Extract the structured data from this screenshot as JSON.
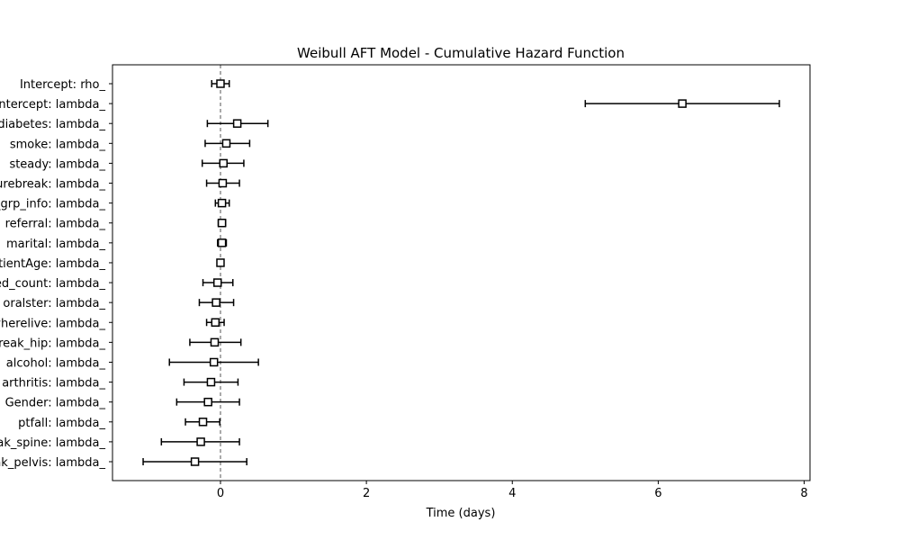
{
  "chart_data": {
    "type": "forest",
    "title": "Weibull AFT Model - Cumulative Hazard Function",
    "xlabel": "Time (days)",
    "ylabel": "",
    "xlim": [
      -1.48,
      8.08
    ],
    "xticks": [
      0,
      2,
      4,
      6,
      8
    ],
    "reference_line_x": 0,
    "grid": false,
    "colors": {
      "marker_edge": "#000000",
      "marker_fill": "#ffffff",
      "ref_line": "#555555"
    },
    "points": [
      {
        "label": "Intercept: rho_",
        "estimate": 0.0,
        "lower": -0.12,
        "upper": 0.12
      },
      {
        "label": "Intercept: lambda_",
        "estimate": 6.33,
        "lower": 5.0,
        "upper": 7.66
      },
      {
        "label": "diabetes: lambda_",
        "estimate": 0.23,
        "lower": -0.18,
        "upper": 0.65
      },
      {
        "label": "smoke: lambda_",
        "estimate": 0.08,
        "lower": -0.21,
        "upper": 0.4
      },
      {
        "label": "steady: lambda_",
        "estimate": 0.04,
        "lower": -0.25,
        "upper": 0.32
      },
      {
        "label": "fracturebreak: lambda_",
        "estimate": 0.03,
        "lower": -0.19,
        "upper": 0.26
      },
      {
        "label": "bmi_grp_info: lambda_",
        "estimate": 0.02,
        "lower": -0.07,
        "upper": 0.12
      },
      {
        "label": "referral: lambda_",
        "estimate": 0.02,
        "lower": -0.03,
        "upper": 0.07
      },
      {
        "label": "marital: lambda_",
        "estimate": 0.02,
        "lower": -0.04,
        "upper": 0.08
      },
      {
        "label": "PatientAge: lambda_",
        "estimate": 0.0,
        "lower": -0.01,
        "upper": 0.01
      },
      {
        "label": "med_count: lambda_",
        "estimate": -0.04,
        "lower": -0.24,
        "upper": 0.17
      },
      {
        "label": "oralster: lambda_",
        "estimate": -0.06,
        "lower": -0.29,
        "upper": 0.18
      },
      {
        "label": "wherelive: lambda_",
        "estimate": -0.07,
        "lower": -0.19,
        "upper": 0.05
      },
      {
        "label": "break_hip: lambda_",
        "estimate": -0.08,
        "lower": -0.42,
        "upper": 0.28
      },
      {
        "label": "alcohol: lambda_",
        "estimate": -0.09,
        "lower": -0.7,
        "upper": 0.52
      },
      {
        "label": "arthritis: lambda_",
        "estimate": -0.13,
        "lower": -0.5,
        "upper": 0.24
      },
      {
        "label": "Gender: lambda_",
        "estimate": -0.17,
        "lower": -0.6,
        "upper": 0.26
      },
      {
        "label": "ptfall: lambda_",
        "estimate": -0.24,
        "lower": -0.48,
        "upper": -0.01
      },
      {
        "label": "break_spine: lambda_",
        "estimate": -0.27,
        "lower": -0.81,
        "upper": 0.26
      },
      {
        "label": "break_pelvis: lambda_",
        "estimate": -0.35,
        "lower": -1.06,
        "upper": 0.36
      }
    ]
  }
}
